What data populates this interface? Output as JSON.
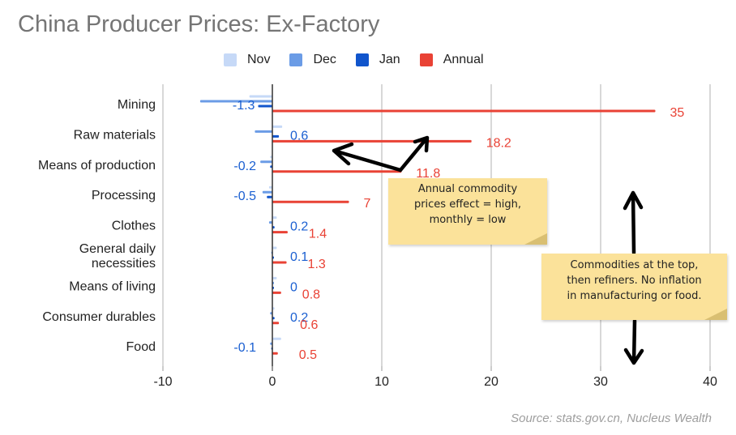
{
  "chart_data": {
    "type": "bar",
    "orientation": "horizontal",
    "title": "China Producer Prices: Ex-Factory",
    "xlabel": "",
    "ylabel": "",
    "xlim": [
      -10,
      40
    ],
    "xticks": [
      -10,
      0,
      10,
      20,
      30,
      40
    ],
    "grid": true,
    "legend_position": "top",
    "categories": [
      "Mining",
      "Raw materials",
      "Means of production",
      "Processing",
      "Clothes",
      "General daily necessities",
      "Means of living",
      "Consumer durables",
      "Food"
    ],
    "category_display": [
      [
        "Mining"
      ],
      [
        "Raw materials"
      ],
      [
        "Means of production"
      ],
      [
        "Processing"
      ],
      [
        "Clothes"
      ],
      [
        "General daily",
        "necessities"
      ],
      [
        "Means of living"
      ],
      [
        "Consumer durables"
      ],
      [
        "Food"
      ]
    ],
    "series": [
      {
        "name": "Nov",
        "color": "#c6d9f7",
        "values": [
          -2.1,
          0.9,
          -0.2,
          -0.3,
          0.4,
          0.4,
          0.4,
          0.2,
          0.8
        ],
        "labels": null
      },
      {
        "name": "Dec",
        "color": "#6b9ce6",
        "values": [
          -6.6,
          -1.6,
          -1.1,
          -0.9,
          -0.3,
          -0.1,
          0.0,
          -0.2,
          -0.2
        ],
        "labels": null
      },
      {
        "name": "Jan",
        "color": "#1155cc",
        "values": [
          -1.3,
          0.6,
          -0.2,
          -0.5,
          0.2,
          0.1,
          0.0,
          0.2,
          -0.1
        ],
        "labels": [
          "-1.3",
          "0.6",
          "-0.2",
          "-0.5",
          "0.2",
          "0.1",
          "0",
          "0.2",
          "-0.1"
        ]
      },
      {
        "name": "Annual",
        "color": "#e94235",
        "values": [
          35,
          18.2,
          11.8,
          7,
          1.4,
          1.3,
          0.8,
          0.6,
          0.5
        ],
        "labels": [
          "35",
          "18.2",
          "11.8",
          "7",
          "1.4",
          "1.3",
          "0.8",
          "0.6",
          "0.5"
        ]
      }
    ],
    "annotations": [
      {
        "text": "Annual commodity prices effect = high, monthly = low",
        "lines": [
          "Annual commodity",
          "prices effect = high,",
          "monthly = low"
        ]
      },
      {
        "text": "Commodities at the top, then refiners. No inflation in manufacturing or food.",
        "lines": [
          "Commodities at the top,",
          "then refiners. No inflation",
          "in manufacturing or food."
        ]
      }
    ],
    "source": "Source: stats.gov.cn, Nucleus Wealth"
  },
  "title": "China Producer Prices: Ex-Factory",
  "legend": [
    {
      "label": "Nov",
      "color": "#c6d9f7"
    },
    {
      "label": "Dec",
      "color": "#6b9ce6"
    },
    {
      "label": "Jan",
      "color": "#1155cc"
    },
    {
      "label": "Annual",
      "color": "#e94235"
    }
  ],
  "colors": {
    "gridline": "#cccccc",
    "axis": "#333333",
    "jan_label": "#1a5fd1",
    "annual_label": "#e94235",
    "note_bg": "#fbe29a"
  },
  "source": "Source: stats.gov.cn, Nucleus Wealth"
}
